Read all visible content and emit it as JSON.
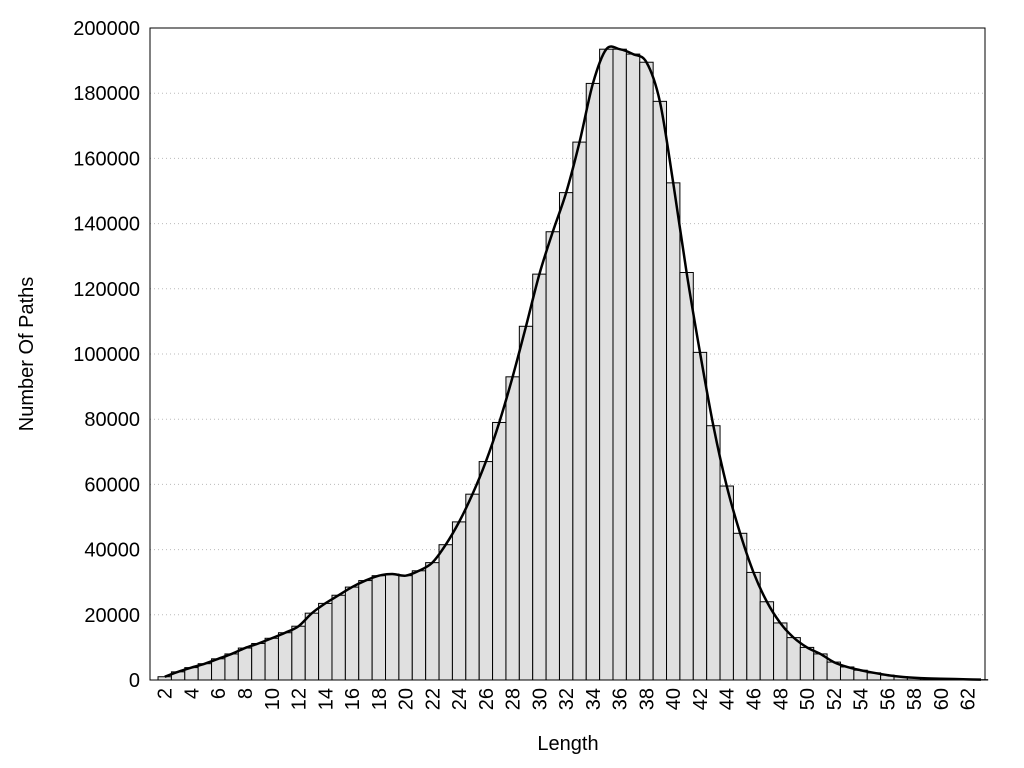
{
  "chart_data": {
    "type": "bar",
    "x_label": "Length",
    "y_label": "Number Of Paths",
    "x": [
      2,
      3,
      4,
      5,
      6,
      7,
      8,
      9,
      10,
      11,
      12,
      13,
      14,
      15,
      16,
      17,
      18,
      19,
      20,
      21,
      22,
      23,
      24,
      25,
      26,
      27,
      28,
      29,
      30,
      31,
      32,
      33,
      34,
      35,
      36,
      37,
      38,
      39,
      40,
      41,
      42,
      43,
      44,
      45,
      46,
      47,
      48,
      49,
      50,
      51,
      52,
      53,
      54,
      55,
      56,
      57,
      58,
      59,
      60,
      61,
      62,
      63
    ],
    "values": [
      1000,
      2500,
      3800,
      5000,
      6500,
      8000,
      9800,
      11200,
      12800,
      14500,
      16500,
      20500,
      23500,
      26000,
      28500,
      30500,
      32000,
      32500,
      32000,
      33500,
      36000,
      41500,
      48500,
      57000,
      67000,
      79000,
      93000,
      108500,
      124500,
      137500,
      149500,
      165000,
      183000,
      193500,
      193500,
      192000,
      189500,
      177500,
      152500,
      125000,
      100500,
      78000,
      59500,
      45000,
      33000,
      24000,
      17500,
      13000,
      10000,
      8000,
      5500,
      4000,
      3000,
      2200,
      1500,
      1000,
      700,
      500,
      400,
      300,
      200,
      100
    ],
    "color": "#e0e0e0",
    "edge_color": "#000000",
    "curve_color": "#000000",
    "xlim": [
      0.9,
      63.3
    ],
    "xticks": [
      2,
      4,
      6,
      8,
      10,
      12,
      14,
      16,
      18,
      20,
      22,
      24,
      26,
      28,
      30,
      32,
      34,
      36,
      38,
      40,
      42,
      44,
      46,
      48,
      50,
      52,
      54,
      56,
      58,
      60,
      62
    ],
    "ylim": [
      0,
      200000
    ],
    "yticks": [
      0,
      20000,
      40000,
      60000,
      80000,
      100000,
      120000,
      140000,
      160000,
      180000,
      200000
    ],
    "grid": true
  }
}
